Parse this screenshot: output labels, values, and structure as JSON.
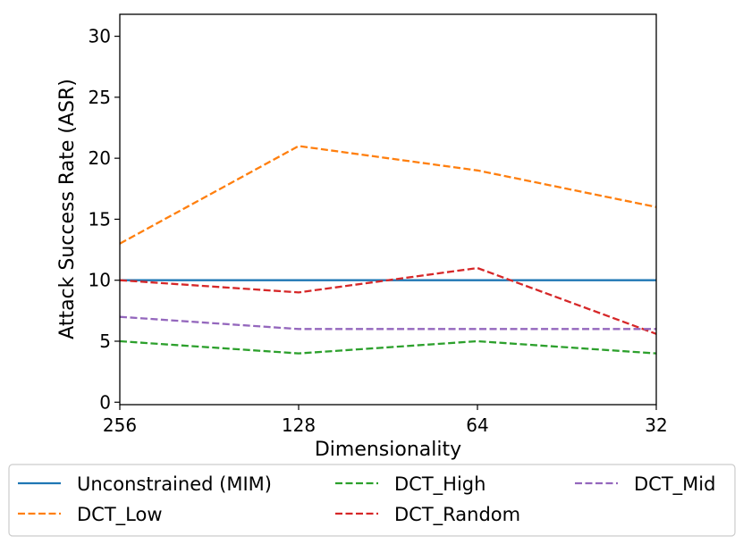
{
  "chart_data": {
    "type": "line",
    "xlabel": "Dimensionality",
    "ylabel": "Attack Success Rate (ASR)",
    "categories": [
      "256",
      "128",
      "64",
      "32"
    ],
    "ylim": [
      -0.2,
      31.8
    ],
    "yticks": [
      0,
      5,
      10,
      15,
      20,
      25,
      30
    ],
    "grid": false,
    "legend_placement": "bottom",
    "series": [
      {
        "name": "Unconstrained (MIM)",
        "color": "#1f77b4",
        "dash": "solid",
        "values": [
          10,
          10,
          10,
          10
        ]
      },
      {
        "name": "DCT_Low",
        "color": "#ff7f0e",
        "dash": "dashed",
        "values": [
          13,
          21,
          19,
          16
        ]
      },
      {
        "name": "DCT_High",
        "color": "#2ca02c",
        "dash": "dashed",
        "values": [
          5,
          4,
          5,
          4
        ]
      },
      {
        "name": "DCT_Random",
        "color": "#d62728",
        "dash": "dashed",
        "values": [
          10,
          9,
          11,
          5.6
        ]
      },
      {
        "name": "DCT_Mid",
        "color": "#9467bd",
        "dash": "dashed",
        "values": [
          7,
          6,
          6,
          6
        ]
      }
    ]
  }
}
